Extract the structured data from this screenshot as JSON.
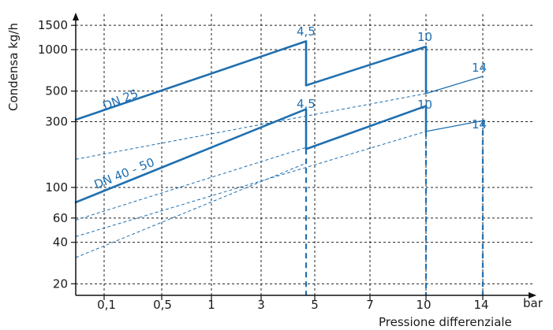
{
  "chart_data": {
    "type": "line",
    "ylabel": "Condensa kg/h",
    "xlabel": "Pressione differenziale",
    "x_unit": "bar",
    "y_scale": "log",
    "ylim": [
      20,
      1500
    ],
    "x_ticks": [
      "0,1",
      "0,5",
      "1",
      "3",
      "5",
      "7",
      "10",
      "14"
    ],
    "y_ticks": [
      20,
      40,
      60,
      100,
      300,
      500,
      1000,
      1500
    ],
    "grid": true,
    "annotations": [
      {
        "text": "DN 25",
        "series": "upper"
      },
      {
        "text": "DN 40 - 50",
        "series": "lower"
      },
      {
        "text": "4,5",
        "at": 4.5,
        "series": "upper"
      },
      {
        "text": "10",
        "at": 10,
        "series": "upper"
      },
      {
        "text": "14",
        "at": 14,
        "series": "upper"
      },
      {
        "text": "4,5",
        "at": 4.5,
        "series": "lower"
      },
      {
        "text": "10",
        "at": 10,
        "series": "lower"
      },
      {
        "text": "14",
        "at": 14,
        "series": "lower"
      }
    ],
    "series": [
      {
        "segments": [
          {
            "x": [
              0.05,
              4.5
            ],
            "y": [
              310,
              1150
            ],
            "weight": "bold"
          },
          {
            "x": [
              4.5,
              10
            ],
            "y": [
              550,
              1050
            ],
            "weight": "bold"
          },
          {
            "x": [
              10,
              14
            ],
            "y": [
              480,
              640
            ],
            "weight": "thin"
          }
        ]
      },
      {
        "segments": [
          {
            "x": [
              0.05,
              4.5
            ],
            "y": [
              78,
              370
            ],
            "weight": "bold"
          },
          {
            "x": [
              4.5,
              10
            ],
            "y": [
              190,
              390
            ],
            "weight": "bold"
          },
          {
            "x": [
              10,
              14
            ],
            "y": [
              255,
              305
            ],
            "weight": "thin"
          }
        ]
      }
    ],
    "dashed_lines": [
      {
        "x": [
          0.05,
          10
        ],
        "y": [
          160,
          480
        ]
      },
      {
        "x": [
          0.05,
          4.5
        ],
        "y": [
          58,
          195
        ]
      },
      {
        "x": [
          0.05,
          10
        ],
        "y": [
          44,
          255
        ]
      },
      {
        "x": [
          0.05,
          4.5
        ],
        "y": [
          31,
          150
        ]
      }
    ],
    "drop_lines_x": [
      4.5,
      10,
      14
    ],
    "colors": {
      "series": "#1f6fb0",
      "grid": "#222222",
      "text": "#1a1a1a"
    }
  }
}
